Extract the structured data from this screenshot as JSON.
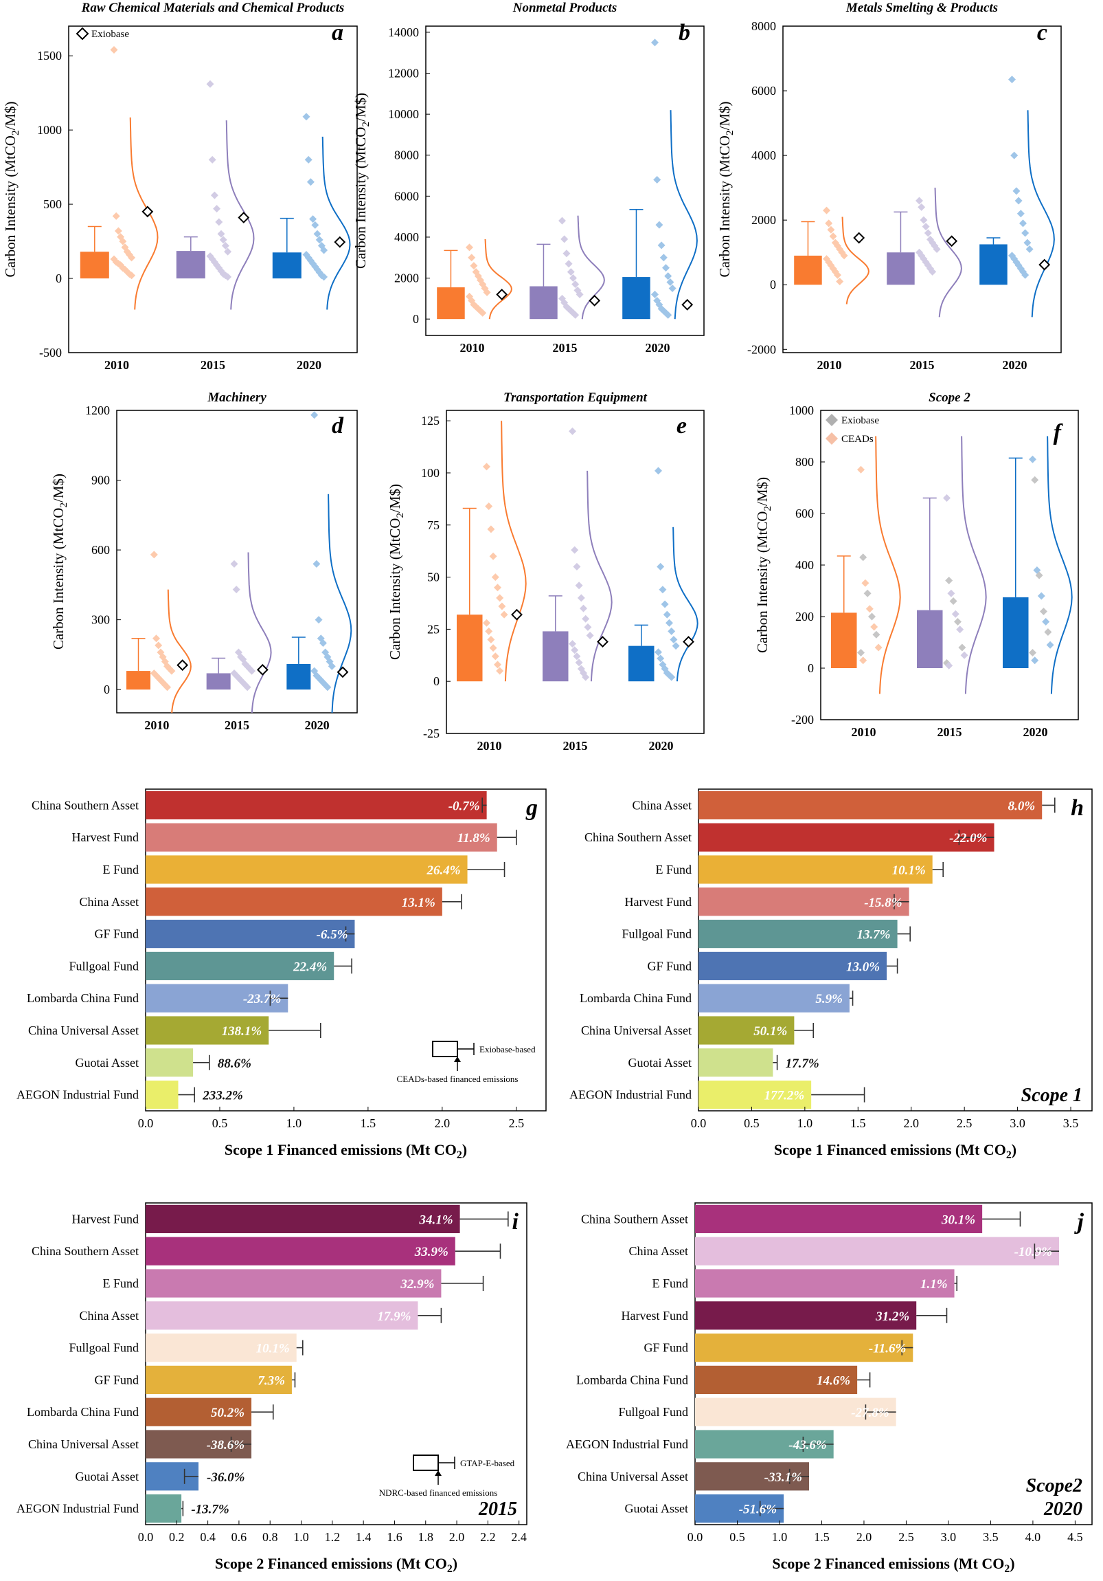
{
  "chart_data": [
    {
      "id": "a",
      "type": "box-distribution",
      "title": "Raw Chemical Materials and Chemical Products",
      "ylabel": "Carbon Intensity (MtCO2/M$)",
      "ylim": [
        -500,
        1700
      ],
      "yticks": [
        -500,
        0,
        500,
        1000,
        1500
      ],
      "categories": [
        "2010",
        "2015",
        "2020"
      ],
      "legend": [
        "Exiobase"
      ],
      "bars": [
        180,
        185,
        175
      ],
      "whisker": [
        350,
        280,
        405
      ],
      "exiobase": [
        450,
        410,
        245
      ],
      "dist_max": [
        1085,
        1065,
        955
      ],
      "dist_min": [
        -210,
        -210,
        -210
      ],
      "points": [
        [
          1540,
          420,
          320,
          280,
          250,
          210,
          180,
          160,
          140,
          130,
          110,
          100,
          90,
          70,
          60,
          45,
          30,
          20
        ],
        [
          1310,
          800,
          560,
          470,
          380,
          300,
          260,
          220,
          180,
          150,
          130,
          110,
          90,
          70,
          50,
          30,
          20,
          10
        ],
        [
          1090,
          800,
          650,
          400,
          360,
          300,
          260,
          220,
          190,
          160,
          140,
          120,
          100,
          80,
          60,
          40,
          20,
          10
        ]
      ]
    },
    {
      "id": "b",
      "type": "box-distribution",
      "title": "Nonmetal Products",
      "ylabel": "Carbon Intensity (MtCO2/M$)",
      "ylim": [
        -800,
        14300
      ],
      "yticks": [
        0,
        2000,
        4000,
        6000,
        8000,
        10000,
        12000,
        14000
      ],
      "categories": [
        "2010",
        "2015",
        "2020"
      ],
      "bars": [
        1550,
        1600,
        2050
      ],
      "whisker": [
        3350,
        3650,
        5350
      ],
      "exiobase": [
        1200,
        900,
        700
      ],
      "dist_max": [
        3900,
        5050,
        10200
      ],
      "dist_min": [
        0,
        0,
        0
      ],
      "points": [
        [
          3500,
          3000,
          2600,
          2300,
          2100,
          1900,
          1700,
          1500,
          1300,
          1100,
          900,
          700,
          600,
          500,
          400,
          300
        ],
        [
          4800,
          3900,
          3200,
          2700,
          2300,
          2000,
          1700,
          1400,
          1200,
          1000,
          800,
          600,
          500,
          400,
          300,
          200
        ],
        [
          13500,
          6800,
          4600,
          3600,
          3000,
          2500,
          2100,
          1800,
          1500,
          1200,
          900,
          700,
          500,
          400,
          300,
          200
        ]
      ]
    },
    {
      "id": "c",
      "type": "box-distribution",
      "title": "Metals Smelting & Products",
      "ylabel": "Carbon Intensity (MtCO2/M$)",
      "ylim": [
        -2100,
        8000
      ],
      "yticks": [
        -2000,
        0,
        2000,
        4000,
        6000,
        8000
      ],
      "categories": [
        "2010",
        "2015",
        "2020"
      ],
      "bars": [
        900,
        1000,
        1250
      ],
      "whisker": [
        1950,
        2250,
        1450
      ],
      "exiobase": [
        1450,
        1350,
        620
      ],
      "dist_max": [
        2100,
        3000,
        5400
      ],
      "dist_min": [
        -600,
        -1000,
        -1000
      ],
      "points": [
        [
          2300,
          1900,
          1700,
          1500,
          1300,
          1200,
          1100,
          1000,
          900,
          800,
          700,
          600,
          500,
          400,
          300,
          100
        ],
        [
          2600,
          2400,
          2000,
          1800,
          1600,
          1400,
          1300,
          1200,
          1100,
          1000,
          900,
          800,
          700,
          600,
          500,
          400
        ],
        [
          6350,
          4000,
          2900,
          2600,
          2200,
          1900,
          1600,
          1300,
          1100,
          900,
          800,
          700,
          600,
          500,
          400,
          300
        ]
      ]
    },
    {
      "id": "d",
      "type": "box-distribution",
      "title": "Machinery",
      "ylabel": "Carbon Intensity (MtCO2/M$)",
      "ylim": [
        -100,
        1200
      ],
      "yticks": [
        0,
        300,
        600,
        900,
        1200
      ],
      "categories": [
        "2010",
        "2015",
        "2020"
      ],
      "bars": [
        80,
        70,
        110
      ],
      "whisker": [
        220,
        135,
        225
      ],
      "exiobase": [
        105,
        85,
        75
      ],
      "dist_max": [
        430,
        590,
        840
      ],
      "dist_min": [
        -100,
        -100,
        -100
      ],
      "points": [
        [
          580,
          220,
          190,
          160,
          140,
          120,
          100,
          90,
          80,
          70,
          60,
          50,
          40,
          30,
          20,
          10
        ],
        [
          540,
          430,
          160,
          140,
          130,
          110,
          100,
          90,
          80,
          70,
          60,
          50,
          40,
          30,
          20,
          10
        ],
        [
          1180,
          540,
          300,
          220,
          200,
          160,
          140,
          120,
          100,
          80,
          60,
          50,
          40,
          30,
          20,
          10
        ]
      ]
    },
    {
      "id": "e",
      "type": "box-distribution",
      "title": "Transportation Equipment",
      "ylabel": "Carbon Intensity (MtCO2/M$)",
      "ylim": [
        -25,
        130
      ],
      "yticks": [
        -25,
        0,
        25,
        50,
        75,
        100,
        125
      ],
      "categories": [
        "2010",
        "2015",
        "2020"
      ],
      "bars": [
        32,
        24,
        17
      ],
      "whisker": [
        83,
        41,
        27
      ],
      "exiobase": [
        32,
        19,
        19
      ],
      "dist_max": [
        125,
        101,
        74
      ],
      "dist_min": [
        0,
        0,
        0
      ],
      "points": [
        [
          103,
          84,
          73,
          60,
          50,
          45,
          40,
          36,
          32,
          28,
          24,
          20,
          16,
          12,
          8,
          5
        ],
        [
          120,
          63,
          55,
          46,
          40,
          35,
          30,
          26,
          22,
          18,
          15,
          12,
          9,
          6,
          4,
          2
        ],
        [
          101,
          55,
          44,
          37,
          32,
          28,
          24,
          20,
          17,
          14,
          11,
          8,
          6,
          4,
          3,
          2
        ]
      ]
    },
    {
      "id": "f",
      "type": "box-distribution",
      "title": "Scope 2",
      "ylabel": "Carbon Intensity (MtCO2/M$)",
      "ylim": [
        -200,
        1000
      ],
      "yticks": [
        -200,
        0,
        200,
        400,
        600,
        800,
        1000
      ],
      "categories": [
        "2010",
        "2015",
        "2020"
      ],
      "legend": [
        "Exiobase",
        "CEADs"
      ],
      "bars": [
        215,
        225,
        275
      ],
      "whisker": [
        435,
        660,
        815
      ],
      "dist_max": [
        900,
        900,
        900
      ],
      "dist_min": [
        -100,
        -100,
        -100
      ],
      "points": [
        [
          770,
          430,
          330,
          290,
          230,
          200,
          160,
          130,
          80,
          60,
          30
        ],
        [
          660,
          340,
          290,
          260,
          210,
          180,
          150,
          80,
          50,
          20,
          10
        ],
        [
          810,
          730,
          380,
          360,
          280,
          220,
          180,
          140,
          90,
          60,
          30
        ]
      ]
    },
    {
      "id": "g",
      "type": "bar-horizontal",
      "xlabel": "Scope 1 Financed emissions (Mt CO2)",
      "xlim": [
        0,
        2.7
      ],
      "xticks": [
        0.0,
        0.5,
        1.0,
        1.5,
        2.0,
        2.5
      ],
      "categories": [
        "China Southern Asset",
        "Harvest Fund",
        "E Fund",
        "China Asset",
        "GF Fund",
        "Fullgoal Fund",
        "Lombarda China Fund",
        "China Universal Asset",
        "Guotai Asset",
        "AEGON Industrial Fund"
      ],
      "values": [
        2.3,
        2.37,
        2.17,
        2.0,
        1.41,
        1.27,
        0.96,
        0.83,
        0.32,
        0.22
      ],
      "error_end": [
        2.27,
        2.5,
        2.42,
        2.13,
        1.35,
        1.39,
        0.84,
        1.18,
        0.43,
        0.33
      ],
      "labels": [
        "-0.7%",
        "11.8%",
        "26.4%",
        "13.1%",
        "-6.5%",
        "22.4%",
        "-23.7%",
        "138.1%",
        "88.6%",
        "233.2%"
      ],
      "colors": [
        "#c0312f",
        "#d87c78",
        "#eab036",
        "#d0603a",
        "#4e74b3",
        "#5e9694",
        "#8aa4d4",
        "#a5a933",
        "#cfe18d",
        "#eaee6a"
      ],
      "legend_label": "Exiobase-based",
      "note": "CEADs-based financed emissions"
    },
    {
      "id": "h",
      "type": "bar-horizontal",
      "xlabel": "Scope 1 Financed emissions (Mt CO2)",
      "xlim": [
        0,
        3.7
      ],
      "xticks": [
        0.0,
        0.5,
        1.0,
        1.5,
        2.0,
        2.5,
        3.0,
        3.5
      ],
      "categories": [
        "China Asset",
        "China Southern Asset",
        "E Fund",
        "Harvest Fund",
        "Fullgoal Fund",
        "GF Fund",
        "Lombarda China Fund",
        "China Universal Asset",
        "Guotai Asset",
        "AEGON Industrial Fund"
      ],
      "values": [
        3.23,
        2.78,
        2.2,
        1.98,
        1.87,
        1.77,
        1.42,
        0.9,
        0.7,
        1.06
      ],
      "error_end": [
        3.35,
        2.45,
        2.3,
        1.84,
        1.99,
        1.87,
        1.45,
        1.08,
        0.74,
        1.56
      ],
      "labels": [
        "8.0%",
        "-22.0%",
        "10.1%",
        "-15.8%",
        "13.7%",
        "13.0%",
        "5.9%",
        "50.1%",
        "17.7%",
        "177.2%"
      ],
      "colors": [
        "#d0603a",
        "#c0312f",
        "#eab036",
        "#d87c78",
        "#5e9694",
        "#4e74b3",
        "#8aa4d4",
        "#a5a933",
        "#cfe18d",
        "#eaee6a"
      ],
      "corner_label": "Scope 1"
    },
    {
      "id": "i",
      "type": "bar-horizontal",
      "xlabel": "Scope 2 Financed emissions (Mt CO2)",
      "xlim": [
        0,
        2.45
      ],
      "xticks": [
        0.0,
        0.2,
        0.4,
        0.6,
        0.8,
        1.0,
        1.2,
        1.4,
        1.6,
        1.8,
        2.0,
        2.2,
        2.4
      ],
      "categories": [
        "Harvest Fund",
        "China Southern Asset",
        "E Fund",
        "China Asset",
        "Fullgoal Fund",
        "GF Fund",
        "Lombarda China Fund",
        "China Universal Asset",
        "Guotai Asset",
        "AEGON Industrial Fund"
      ],
      "values": [
        2.02,
        1.99,
        1.9,
        1.75,
        0.97,
        0.94,
        0.68,
        0.68,
        0.34,
        0.23
      ],
      "error_end": [
        2.33,
        2.28,
        2.17,
        1.9,
        1.01,
        0.96,
        0.82,
        0.55,
        0.25,
        0.24
      ],
      "labels": [
        "34.1%",
        "33.9%",
        "32.9%",
        "17.9%",
        "10.1%",
        "7.3%",
        "50.2%",
        "-38.6%",
        "-36.0%",
        "-13.7%"
      ],
      "colors": [
        "#771b4b",
        "#a8317c",
        "#c97ab0",
        "#e4bedd",
        "#fae6d5",
        "#e4b13b",
        "#b35f33",
        "#7e5a50",
        "#4f81c1",
        "#6aa69a"
      ],
      "legend_label": "GTAP-E-based",
      "note": "NDRC-based financed emissions",
      "corner_label": "2015"
    },
    {
      "id": "j",
      "type": "bar-horizontal",
      "xlabel": "Scope 2 Financed emissions (Mt CO2)",
      "xlim": [
        0,
        4.7
      ],
      "xticks": [
        0.0,
        0.5,
        1.0,
        1.5,
        2.0,
        2.5,
        3.0,
        3.5,
        4.0,
        4.5
      ],
      "categories": [
        "China Southern Asset",
        "China Asset",
        "E Fund",
        "Harvest Fund",
        "GF Fund",
        "Lombarda China Fund",
        "Fullgoal Fund",
        "AEGON Industrial Fund",
        "China Universal Asset",
        "Guotai Asset"
      ],
      "values": [
        3.4,
        4.31,
        3.07,
        2.62,
        2.58,
        1.92,
        2.38,
        1.64,
        1.35,
        1.05
      ],
      "error_end": [
        3.85,
        4.02,
        3.1,
        2.98,
        2.45,
        2.07,
        2.02,
        1.28,
        1.12,
        0.77
      ],
      "labels": [
        "30.1%",
        "-10.9%",
        "1.1%",
        "31.2%",
        "-11.6%",
        "14.6%",
        "-27.8%",
        "-43.6%",
        "-33.1%",
        "-51.6%"
      ],
      "colors": [
        "#a8317c",
        "#e4bedd",
        "#c97ab0",
        "#771b4b",
        "#e4b13b",
        "#b35f33",
        "#fae6d5",
        "#6aa69a",
        "#7e5a50",
        "#4f81c1"
      ],
      "corner_label": [
        "Scope2",
        "2020"
      ]
    }
  ]
}
